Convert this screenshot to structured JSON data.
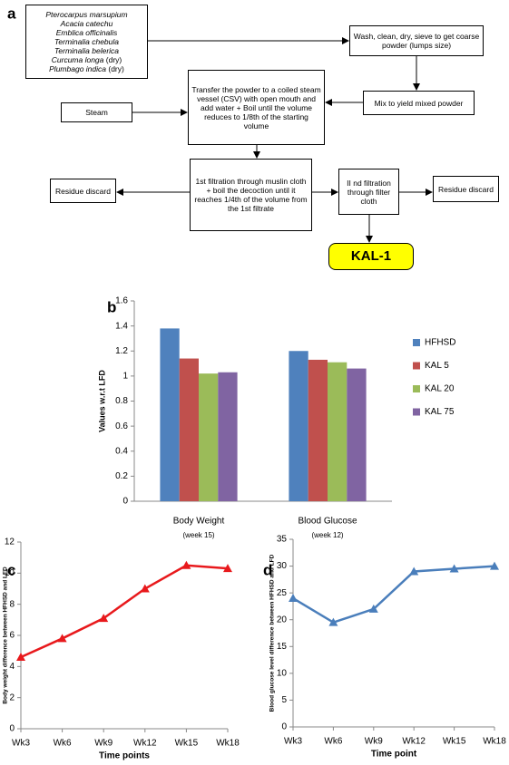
{
  "diagram": {
    "panel": "a",
    "nodes": [
      {
        "lines": [
          {
            "species": "Pterocarpus marsupium"
          },
          {
            "species": "Acacia catechu"
          },
          {
            "species": "Emblica officinalis"
          },
          {
            "species": "Terminalia chebula"
          },
          {
            "species": "Terminalia belerica"
          },
          {
            "species": "Curcuma longa",
            "note": "(dry)"
          },
          {
            "species": "Plumbago indica",
            "note": "(dry)"
          }
        ]
      },
      {
        "text": "Wash, clean, dry, sieve to get coarse powder (lumps size)"
      },
      {
        "text": "Mix to yield mixed powder"
      },
      {
        "text": "Transfer the powder to a coiled steam vessel (CSV) with open mouth and add water + Boil until the volume reduces to 1/8th of the starting volume"
      },
      {
        "text": "Steam"
      },
      {
        "text": "1st filtration through muslin cloth + boil the decoction until it reaches 1/4th of the volume from the 1st filtrate"
      },
      {
        "text": "Residue discard"
      },
      {
        "text": "II nd filtration through filter cloth"
      },
      {
        "text": "Residue discard"
      },
      {
        "text": "KAL-1"
      }
    ]
  },
  "chart_data": [
    {
      "type": "bar",
      "panel": "b",
      "ylabel": "Values w.r.t LFD",
      "categories": [
        "Body Weight",
        "Blood Glucose"
      ],
      "category_notes": [
        "(week 15)",
        "(week 12)"
      ],
      "series": [
        {
          "name": "HFHSD",
          "color": "#4f81bd",
          "values": [
            1.38,
            1.2
          ]
        },
        {
          "name": "KAL 5",
          "color": "#c0504d",
          "values": [
            1.14,
            1.13
          ]
        },
        {
          "name": "KAL 20",
          "color": "#9bbb59",
          "values": [
            1.02,
            1.11
          ]
        },
        {
          "name": "KAL 75",
          "color": "#8064a2",
          "values": [
            1.03,
            1.06
          ]
        }
      ],
      "ylim": [
        0,
        1.6
      ],
      "yticks": [
        0,
        0.2,
        0.4,
        0.6,
        0.8,
        1,
        1.2,
        1.4,
        1.6
      ],
      "legend": "right"
    },
    {
      "type": "line",
      "panel": "c",
      "ylabel": "Body weight difference between HFHSD and LFD",
      "xlabel": "Time points",
      "categories": [
        "Wk3",
        "Wk6",
        "Wk9",
        "Wk12",
        "Wk15",
        "Wk18"
      ],
      "values": [
        4.6,
        5.8,
        7.1,
        9.0,
        10.5,
        10.3
      ],
      "color": "#e8191c",
      "ylim": [
        0,
        12
      ],
      "yticks": [
        0,
        2,
        4,
        6,
        8,
        10,
        12
      ]
    },
    {
      "type": "line",
      "panel": "d",
      "ylabel": "Blood glucose level difference between HFHSD and LFD",
      "xlabel": "Time point",
      "categories": [
        "Wk3",
        "Wk6",
        "Wk9",
        "Wk12",
        "Wk15",
        "Wk18"
      ],
      "values": [
        24,
        19.5,
        22,
        29,
        29.5,
        30
      ],
      "color": "#4a7ebb",
      "ylim": [
        0,
        35
      ],
      "yticks": [
        0,
        5,
        10,
        15,
        20,
        25,
        30,
        35
      ]
    }
  ]
}
